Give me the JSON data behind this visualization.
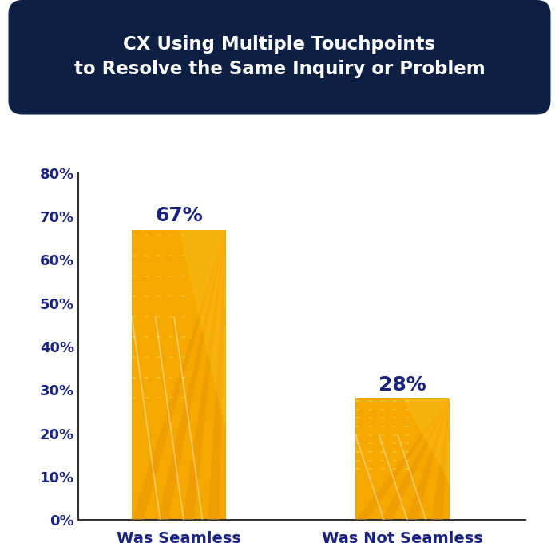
{
  "title_line1": "CX Using Multiple Touchpoints",
  "title_line2": "to Resolve the Same Inquiry or Problem",
  "title_bg_color": "#0d2044",
  "title_text_color": "#ffffff",
  "categories": [
    "Was Seamless",
    "Was Not Seamless"
  ],
  "values": [
    67,
    28
  ],
  "bar_color_main": "#F5A800",
  "bar_color_stripe": "#E89400",
  "bar_color_light": "#FFCA28",
  "ylim": [
    0,
    80
  ],
  "yticks": [
    0,
    10,
    20,
    30,
    40,
    50,
    60,
    70,
    80
  ],
  "label_color": "#1a237e",
  "axis_color": "#555555",
  "tick_color": "#1a237e",
  "background_color": "#ffffff",
  "value_fontsize": 18,
  "tick_fontsize": 13,
  "cat_fontsize": 14
}
